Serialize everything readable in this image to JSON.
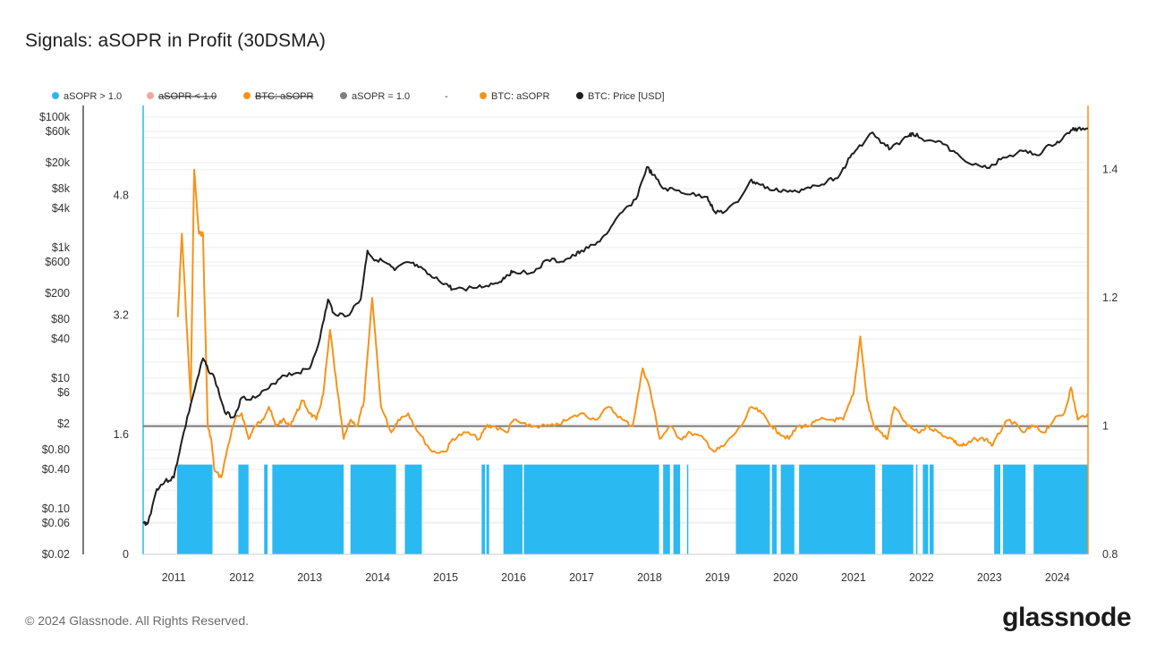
{
  "header": {
    "title": "Signals: aSOPR in Profit (30DSMA)"
  },
  "footer": {
    "copyright": "© 2024 Glassnode. All Rights Reserved.",
    "brand": "glassnode"
  },
  "colors": {
    "signal": "#2bb9f2",
    "sopr": "#f7931a",
    "sopr_faded": "#f5a46a",
    "sopr_low": "#f2a79c",
    "baseline": "#777777",
    "price": "#1f1f1f"
  },
  "chart_data": {
    "type": "line",
    "title": "Signals: aSOPR in Profit (30DSMA)",
    "legend": {
      "placement": "top-left",
      "items": [
        {
          "name": "aSOPR > 1.0",
          "color": "#2bb9f2",
          "hidden": false,
          "marker": "dot"
        },
        {
          "name": "aSOPR < 1.0",
          "color": "#f2a79c",
          "hidden": true,
          "marker": "dot"
        },
        {
          "name": "BTC: aSOPR",
          "color": "#f7931a",
          "hidden": true,
          "marker": "dot"
        },
        {
          "name": "aSOPR = 1.0",
          "color": "#808080",
          "hidden": false,
          "marker": "dot"
        },
        {
          "name": "-",
          "color": "#ffffff",
          "hidden": false,
          "marker": "none"
        },
        {
          "name": "BTC: aSOPR",
          "color": "#f7931a",
          "hidden": false,
          "marker": "dot"
        },
        {
          "name": "BTC: Price [USD]",
          "color": "#1f1f1f",
          "hidden": false,
          "marker": "dot"
        }
      ]
    },
    "x_axis": {
      "range": [
        2010.55,
        2024.45
      ],
      "ticks": [
        "2011",
        "2012",
        "2013",
        "2014",
        "2015",
        "2016",
        "2017",
        "2018",
        "2019",
        "2020",
        "2021",
        "2022",
        "2023",
        "2024"
      ]
    },
    "price_axis": {
      "scale": "log",
      "range": [
        0.02,
        150000
      ],
      "ticks": [
        {
          "label": "$100k",
          "value": 100000
        },
        {
          "label": "$60k",
          "value": 60000
        },
        {
          "label": "$20k",
          "value": 20000
        },
        {
          "label": "$8k",
          "value": 8000
        },
        {
          "label": "$4k",
          "value": 4000
        },
        {
          "label": "$1k",
          "value": 1000
        },
        {
          "label": "$600",
          "value": 600
        },
        {
          "label": "$200",
          "value": 200
        },
        {
          "label": "$80",
          "value": 80
        },
        {
          "label": "$40",
          "value": 40
        },
        {
          "label": "$10",
          "value": 10
        },
        {
          "label": "$6",
          "value": 6
        },
        {
          "label": "$2",
          "value": 2
        },
        {
          "label": "$0.80",
          "value": 0.8
        },
        {
          "label": "$0.40",
          "value": 0.4
        },
        {
          "label": "$0.10",
          "value": 0.1
        },
        {
          "label": "$0.06",
          "value": 0.06
        },
        {
          "label": "$0.02",
          "value": 0.02
        }
      ]
    },
    "signal_axis": {
      "range": [
        0,
        6
      ],
      "ticks": [
        {
          "label": "4.8",
          "value": 4.8
        },
        {
          "label": "3.2",
          "value": 3.2
        },
        {
          "label": "1.6",
          "value": 1.6
        },
        {
          "label": "0",
          "value": 0
        }
      ]
    },
    "sopr_axis": {
      "range": [
        0.8,
        1.5
      ],
      "ticks": [
        {
          "label": "1.4",
          "value": 1.4
        },
        {
          "label": "1.2",
          "value": 1.2
        },
        {
          "label": "1",
          "value": 1.0
        },
        {
          "label": "0.8",
          "value": 0.8
        }
      ]
    },
    "grid": true,
    "baseline": {
      "name": "aSOPR = 1.0",
      "value": 1.0
    },
    "series": [
      {
        "name": "BTC: Price [USD]",
        "axis": "price",
        "color": "#1f1f1f",
        "x": [
          2010.55,
          2010.62,
          2010.75,
          2010.87,
          2011.0,
          2011.1,
          2011.25,
          2011.43,
          2011.5,
          2011.6,
          2011.75,
          2011.88,
          2012.0,
          2012.2,
          2012.4,
          2012.6,
          2012.8,
          2013.0,
          2013.15,
          2013.27,
          2013.35,
          2013.55,
          2013.75,
          2013.85,
          2013.92,
          2014.1,
          2014.25,
          2014.45,
          2014.6,
          2014.8,
          2015.0,
          2015.1,
          2015.4,
          2015.6,
          2015.8,
          2015.9,
          2016.0,
          2016.3,
          2016.5,
          2016.7,
          2016.9,
          2017.0,
          2017.2,
          2017.4,
          2017.6,
          2017.8,
          2017.96,
          2018.05,
          2018.2,
          2018.4,
          2018.6,
          2018.85,
          2018.95,
          2019.1,
          2019.3,
          2019.48,
          2019.6,
          2019.8,
          2020.0,
          2020.2,
          2020.4,
          2020.6,
          2020.8,
          2020.95,
          2021.05,
          2021.28,
          2021.4,
          2021.55,
          2021.8,
          2021.87,
          2022.0,
          2022.25,
          2022.45,
          2022.6,
          2022.9,
          2023.0,
          2023.2,
          2023.5,
          2023.7,
          2023.9,
          2024.05,
          2024.2,
          2024.3,
          2024.45
        ],
        "values": [
          0.06,
          0.06,
          0.2,
          0.26,
          0.3,
          0.9,
          4,
          20,
          14,
          10,
          3,
          2.5,
          5,
          5,
          7,
          11,
          12,
          14,
          40,
          160,
          100,
          90,
          160,
          900,
          700,
          600,
          450,
          600,
          500,
          350,
          280,
          230,
          240,
          260,
          300,
          380,
          430,
          420,
          650,
          610,
          750,
          900,
          1100,
          1800,
          3500,
          5500,
          17000,
          13000,
          8000,
          7500,
          6500,
          6000,
          3600,
          3500,
          5000,
          10500,
          9500,
          7500,
          7500,
          7000,
          9000,
          10000,
          13000,
          24000,
          32000,
          58000,
          40000,
          33000,
          50000,
          57000,
          47000,
          43000,
          30000,
          23000,
          17000,
          16500,
          24000,
          30000,
          26000,
          37000,
          43000,
          63000,
          66000,
          67000
        ]
      },
      {
        "name": "BTC: aSOPR",
        "axis": "sopr",
        "color": "#f7931a",
        "x": [
          2011.06,
          2011.12,
          2011.25,
          2011.3,
          2011.37,
          2011.43,
          2011.5,
          2011.55,
          2011.6,
          2011.7,
          2011.8,
          2011.9,
          2012.0,
          2012.1,
          2012.2,
          2012.3,
          2012.4,
          2012.5,
          2012.6,
          2012.7,
          2012.8,
          2012.9,
          2013.0,
          2013.1,
          2013.2,
          2013.3,
          2013.4,
          2013.5,
          2013.6,
          2013.7,
          2013.8,
          2013.92,
          2014.05,
          2014.2,
          2014.3,
          2014.45,
          2014.6,
          2014.8,
          2015.0,
          2015.1,
          2015.3,
          2015.5,
          2015.6,
          2015.7,
          2015.9,
          2016.0,
          2016.2,
          2016.4,
          2016.6,
          2016.8,
          2017.0,
          2017.2,
          2017.4,
          2017.6,
          2017.75,
          2017.9,
          2018.0,
          2018.15,
          2018.3,
          2018.45,
          2018.6,
          2018.8,
          2018.95,
          2019.1,
          2019.35,
          2019.5,
          2019.65,
          2019.8,
          2019.9,
          2020.05,
          2020.18,
          2020.35,
          2020.5,
          2020.7,
          2020.85,
          2021.0,
          2021.1,
          2021.2,
          2021.3,
          2021.4,
          2021.5,
          2021.6,
          2021.8,
          2021.95,
          2022.1,
          2022.25,
          2022.45,
          2022.55,
          2022.65,
          2022.8,
          2022.95,
          2023.05,
          2023.2,
          2023.3,
          2023.5,
          2023.65,
          2023.8,
          2023.95,
          2024.1,
          2024.2,
          2024.3,
          2024.45
        ],
        "values": [
          1.17,
          1.3,
          1.04,
          1.4,
          1.3,
          1.3,
          1.0,
          0.98,
          0.93,
          0.92,
          0.97,
          1.01,
          1.02,
          0.98,
          1.0,
          1.01,
          1.03,
          1.0,
          1.01,
          1.0,
          1.02,
          1.04,
          1.02,
          1.01,
          1.05,
          1.15,
          1.06,
          0.98,
          1.01,
          1.0,
          1.04,
          1.2,
          1.03,
          0.99,
          1.01,
          1.02,
          0.99,
          0.96,
          0.96,
          0.98,
          0.99,
          0.98,
          1.0,
          1.0,
          0.99,
          1.01,
          1.0,
          1.0,
          1.0,
          1.01,
          1.02,
          1.01,
          1.03,
          1.01,
          1.0,
          1.09,
          1.06,
          0.98,
          1.0,
          0.98,
          0.99,
          0.98,
          0.96,
          0.97,
          1.0,
          1.03,
          1.02,
          1.0,
          0.99,
          0.98,
          1.0,
          1.0,
          1.01,
          1.01,
          1.01,
          1.05,
          1.14,
          1.04,
          1.0,
          0.99,
          0.98,
          1.03,
          1.0,
          0.99,
          1.0,
          0.99,
          0.98,
          0.97,
          0.97,
          0.98,
          0.98,
          0.97,
          1.0,
          1.01,
          0.99,
          1.0,
          0.99,
          1.01,
          1.02,
          1.06,
          1.01,
          1.02
        ]
      }
    ],
    "signal_periods": {
      "name": "aSOPR > 1.0",
      "axis": "signal",
      "value": 1.2,
      "color": "#2bb9f2",
      "ranges": [
        [
          2011.05,
          2011.57
        ],
        [
          2011.95,
          2012.1
        ],
        [
          2012.33,
          2012.38
        ],
        [
          2012.45,
          2013.5
        ],
        [
          2013.6,
          2014.27
        ],
        [
          2014.4,
          2014.65
        ],
        [
          2015.53,
          2015.58
        ],
        [
          2015.6,
          2015.64
        ],
        [
          2015.85,
          2016.13
        ],
        [
          2016.15,
          2018.14
        ],
        [
          2018.2,
          2018.3
        ],
        [
          2018.35,
          2018.45
        ],
        [
          2018.55,
          2018.57
        ],
        [
          2019.27,
          2019.77
        ],
        [
          2019.8,
          2019.87
        ],
        [
          2019.93,
          2020.13
        ],
        [
          2020.2,
          2021.32
        ],
        [
          2021.42,
          2021.88
        ],
        [
          2021.92,
          2021.94
        ],
        [
          2022.02,
          2022.1
        ],
        [
          2022.12,
          2022.18
        ],
        [
          2023.07,
          2023.16
        ],
        [
          2023.2,
          2023.53
        ],
        [
          2023.65,
          2024.45
        ]
      ]
    }
  }
}
